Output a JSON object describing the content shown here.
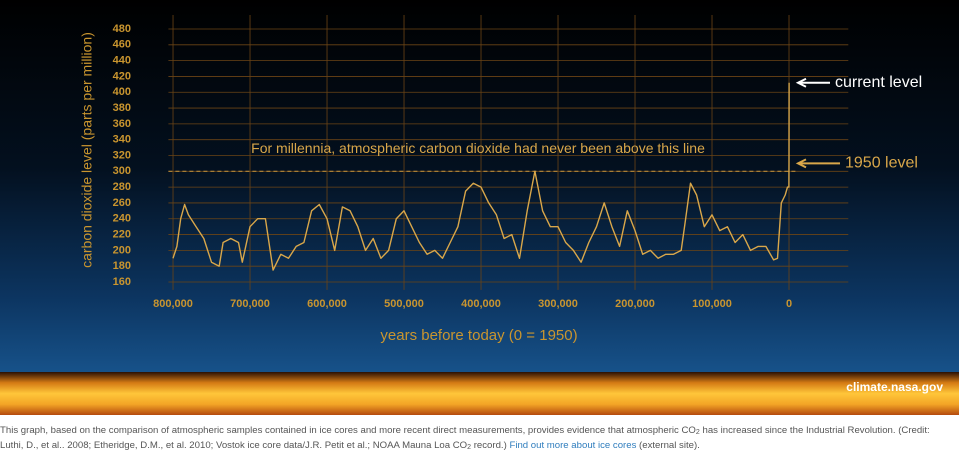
{
  "chart_data": {
    "type": "line",
    "ylabel": "carbon dioxide level (parts per million)",
    "xlabel": "years before today (0 = 1950)",
    "annotation": "For millennia, atmospheric carbon dioxide had never been above this line",
    "threshold": 300,
    "current_label": "current level",
    "level_1950_label": "1950 level",
    "source": "climate.nasa.gov",
    "color": "#d9a74a",
    "grid": true,
    "xlim": [
      806000,
      -77000
    ],
    "ylim": [
      150,
      490
    ],
    "xticks": [
      {
        "value": 800000,
        "label": "800,000"
      },
      {
        "value": 700000,
        "label": "700,000"
      },
      {
        "value": 600000,
        "label": "600,000"
      },
      {
        "value": 500000,
        "label": "500,000"
      },
      {
        "value": 400000,
        "label": "400,000"
      },
      {
        "value": 300000,
        "label": "300,000"
      },
      {
        "value": 200000,
        "label": "200,000"
      },
      {
        "value": 100000,
        "label": "100,000"
      },
      0
    ],
    "yticks": [
      160,
      180,
      200,
      220,
      240,
      260,
      280,
      300,
      320,
      340,
      360,
      380,
      400,
      420,
      440,
      460,
      480
    ],
    "x": [
      800000,
      795000,
      790000,
      785000,
      780000,
      770000,
      760000,
      750000,
      740000,
      735000,
      725000,
      715000,
      710000,
      700000,
      690000,
      680000,
      670000,
      660000,
      650000,
      640000,
      630000,
      620000,
      610000,
      600000,
      590000,
      580000,
      570000,
      560000,
      550000,
      540000,
      530000,
      520000,
      510000,
      500000,
      490000,
      480000,
      470000,
      460000,
      450000,
      440000,
      430000,
      420000,
      410000,
      400000,
      390000,
      380000,
      370000,
      360000,
      350000,
      340000,
      330000,
      320000,
      310000,
      300000,
      290000,
      280000,
      270000,
      260000,
      250000,
      240000,
      230000,
      220000,
      210000,
      200000,
      190000,
      180000,
      170000,
      160000,
      150000,
      140000,
      135000,
      128000,
      120000,
      110000,
      100000,
      90000,
      80000,
      70000,
      60000,
      50000,
      40000,
      30000,
      20000,
      15000,
      10000,
      5000,
      2000,
      200,
      0,
      -70
    ],
    "values": [
      190,
      205,
      240,
      258,
      245,
      230,
      215,
      185,
      180,
      210,
      215,
      210,
      185,
      230,
      240,
      240,
      175,
      195,
      190,
      205,
      210,
      250,
      258,
      240,
      200,
      255,
      250,
      230,
      200,
      215,
      190,
      200,
      240,
      250,
      230,
      210,
      195,
      200,
      190,
      210,
      230,
      275,
      285,
      280,
      260,
      245,
      215,
      220,
      190,
      250,
      300,
      250,
      230,
      230,
      210,
      200,
      185,
      210,
      230,
      260,
      230,
      205,
      250,
      225,
      195,
      200,
      190,
      195,
      195,
      200,
      235,
      285,
      270,
      230,
      245,
      225,
      230,
      210,
      220,
      200,
      205,
      205,
      188,
      190,
      260,
      270,
      280,
      280,
      310,
      412
    ]
  },
  "caption": {
    "text_1": "This graph, based on the comparison of atmospheric samples contained in ice cores and more recent direct measurements, provides evidence that atmospheric CO",
    "sub_1": "2",
    "text_2": " has increased since the Industrial Revolution. (Credit: Luthi, D., et al.. 2008; Etheridge, D.M., et al. 2010; Vostok ice core data/J.R. Petit et al.; NOAA Mauna Loa CO",
    "sub_2": "2",
    "text_3": " record.) ",
    "link": "Find out more about ice cores",
    "text_4": " (external site)."
  }
}
